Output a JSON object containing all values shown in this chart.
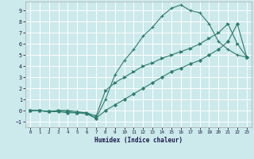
{
  "xlabel": "Humidex (Indice chaleur)",
  "ylabel": "",
  "bg_color": "#cce9eb",
  "grid_color": "#ffffff",
  "line_color": "#2e7d6e",
  "xlim": [
    -0.5,
    23.5
  ],
  "ylim": [
    -1.5,
    9.8
  ],
  "xticks": [
    0,
    1,
    2,
    3,
    4,
    5,
    6,
    7,
    8,
    9,
    10,
    11,
    12,
    13,
    14,
    15,
    16,
    17,
    18,
    19,
    20,
    21,
    22,
    23
  ],
  "yticks": [
    -1,
    0,
    1,
    2,
    3,
    4,
    5,
    6,
    7,
    8,
    9
  ],
  "curve1_x": [
    0,
    1,
    2,
    3,
    4,
    5,
    6,
    7,
    8,
    9,
    10,
    11,
    12,
    13,
    14,
    15,
    16,
    17,
    18,
    19,
    20,
    21,
    22,
    23
  ],
  "curve1_y": [
    0,
    0,
    -0.1,
    0,
    0,
    -0.1,
    -0.2,
    -0.7,
    1.0,
    3.2,
    4.5,
    5.5,
    6.7,
    7.5,
    8.5,
    9.2,
    9.5,
    9.0,
    8.8,
    7.8,
    6.2,
    5.5,
    5.0,
    4.8
  ],
  "curve2_x": [
    0,
    1,
    2,
    3,
    4,
    5,
    6,
    7,
    8,
    9,
    10,
    11,
    12,
    13,
    14,
    15,
    16,
    17,
    18,
    19,
    20,
    21,
    22,
    23
  ],
  "curve2_y": [
    0,
    0,
    -0.1,
    0,
    -0.1,
    -0.2,
    -0.2,
    -0.5,
    1.8,
    2.5,
    3.0,
    3.5,
    4.0,
    4.3,
    4.7,
    5.0,
    5.3,
    5.6,
    6.0,
    6.5,
    7.0,
    7.8,
    6.0,
    4.8
  ],
  "curve3_x": [
    0,
    1,
    2,
    3,
    4,
    5,
    6,
    7,
    8,
    9,
    10,
    11,
    12,
    13,
    14,
    15,
    16,
    17,
    18,
    19,
    20,
    21,
    22,
    23
  ],
  "curve3_y": [
    0,
    0,
    -0.1,
    -0.1,
    -0.2,
    -0.2,
    -0.3,
    -0.7,
    0.0,
    0.5,
    1.0,
    1.5,
    2.0,
    2.5,
    3.0,
    3.5,
    3.8,
    4.2,
    4.5,
    5.0,
    5.5,
    6.2,
    7.8,
    4.8
  ]
}
